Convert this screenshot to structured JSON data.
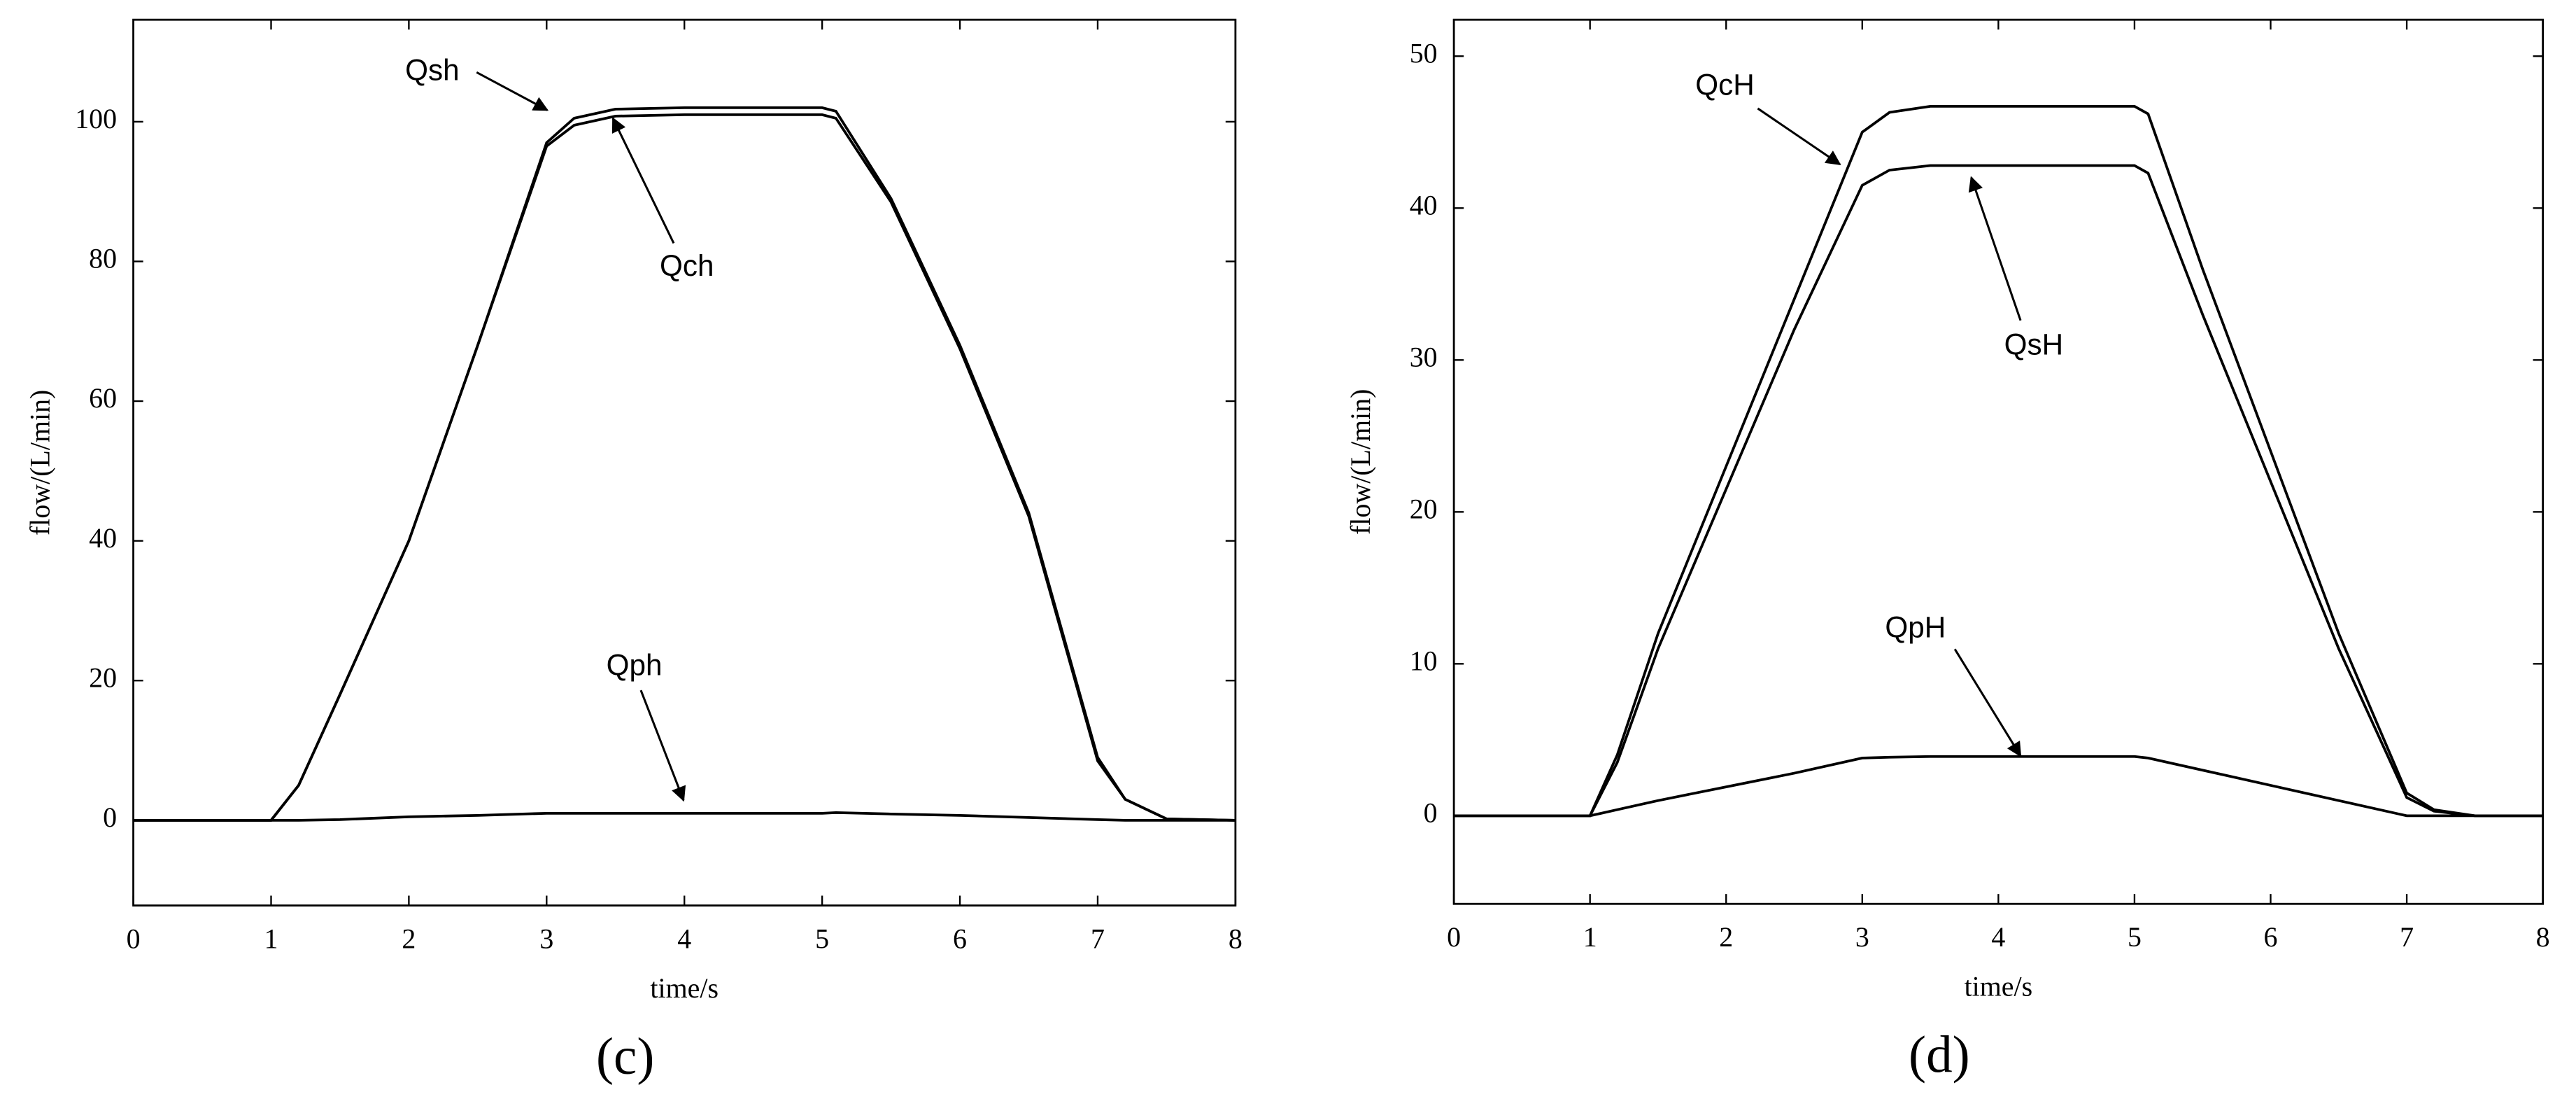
{
  "chart_data": [
    {
      "type": "line",
      "panel_label": "(c)",
      "xlabel": "time/s",
      "ylabel": "flow/(L/min)",
      "x": [
        0,
        1,
        1.2,
        1.5,
        2,
        2.5,
        3,
        3.2,
        3.5,
        4,
        4.5,
        5,
        5.1,
        5.5,
        6,
        6.5,
        7,
        7.2,
        7.5,
        8
      ],
      "series": [
        {
          "name": "Qsh",
          "color": "#000000",
          "values": [
            0,
            0,
            5,
            18,
            40,
            68,
            97,
            100.5,
            101.8,
            102,
            102,
            102,
            101.5,
            89,
            68,
            44,
            9,
            3,
            0.2,
            0
          ]
        },
        {
          "name": "Qch",
          "color": "#000000",
          "values": [
            0,
            0,
            5,
            18,
            40,
            68,
            96.5,
            99.5,
            100.8,
            101,
            101,
            101,
            100.5,
            88.5,
            67.5,
            43.5,
            8.5,
            3,
            0.2,
            0
          ]
        },
        {
          "name": "Qph",
          "color": "#000000",
          "values": [
            0,
            0,
            0,
            0.1,
            0.5,
            0.7,
            1,
            1,
            1,
            1,
            1,
            1,
            1.1,
            0.9,
            0.7,
            0.4,
            0.1,
            0,
            0,
            0
          ]
        }
      ],
      "xlim": [
        0,
        8
      ],
      "xticks": [
        0,
        1,
        2,
        3,
        4,
        5,
        6,
        7,
        8
      ],
      "ylim": [
        -12.2,
        114.6
      ],
      "yticks": [
        0,
        20,
        40,
        60,
        80,
        100
      ]
    },
    {
      "type": "line",
      "panel_label": "(d)",
      "xlabel": "time/s",
      "ylabel": "flow/(L/min)",
      "x": [
        0,
        1,
        1.2,
        1.5,
        2,
        2.5,
        3,
        3.2,
        3.5,
        4,
        4.5,
        5,
        5.1,
        5.5,
        6,
        6.5,
        7,
        7.2,
        7.5,
        8
      ],
      "series": [
        {
          "name": "QcH",
          "color": "#000000",
          "values": [
            0,
            0,
            4,
            12,
            23,
            34,
            45,
            46.3,
            46.7,
            46.7,
            46.7,
            46.7,
            46.2,
            36,
            24,
            12,
            1.5,
            0.4,
            0,
            0
          ]
        },
        {
          "name": "QsH",
          "color": "#000000",
          "values": [
            0,
            0,
            3.5,
            11,
            21.5,
            32,
            41.5,
            42.5,
            42.8,
            42.8,
            42.8,
            42.8,
            42.3,
            33,
            22,
            11,
            1.2,
            0.3,
            0,
            0
          ]
        },
        {
          "name": "QpH",
          "color": "#000000",
          "values": [
            0,
            0,
            0.4,
            1,
            1.9,
            2.8,
            3.8,
            3.85,
            3.9,
            3.9,
            3.9,
            3.9,
            3.8,
            3,
            2,
            1,
            0,
            0,
            0,
            0
          ]
        }
      ],
      "xlim": [
        0,
        8
      ],
      "xticks": [
        0,
        1,
        2,
        3,
        4,
        5,
        6,
        7,
        8
      ],
      "ylim": [
        -5.8,
        52.4
      ],
      "yticks": [
        0,
        10,
        20,
        30,
        40,
        50
      ]
    }
  ]
}
